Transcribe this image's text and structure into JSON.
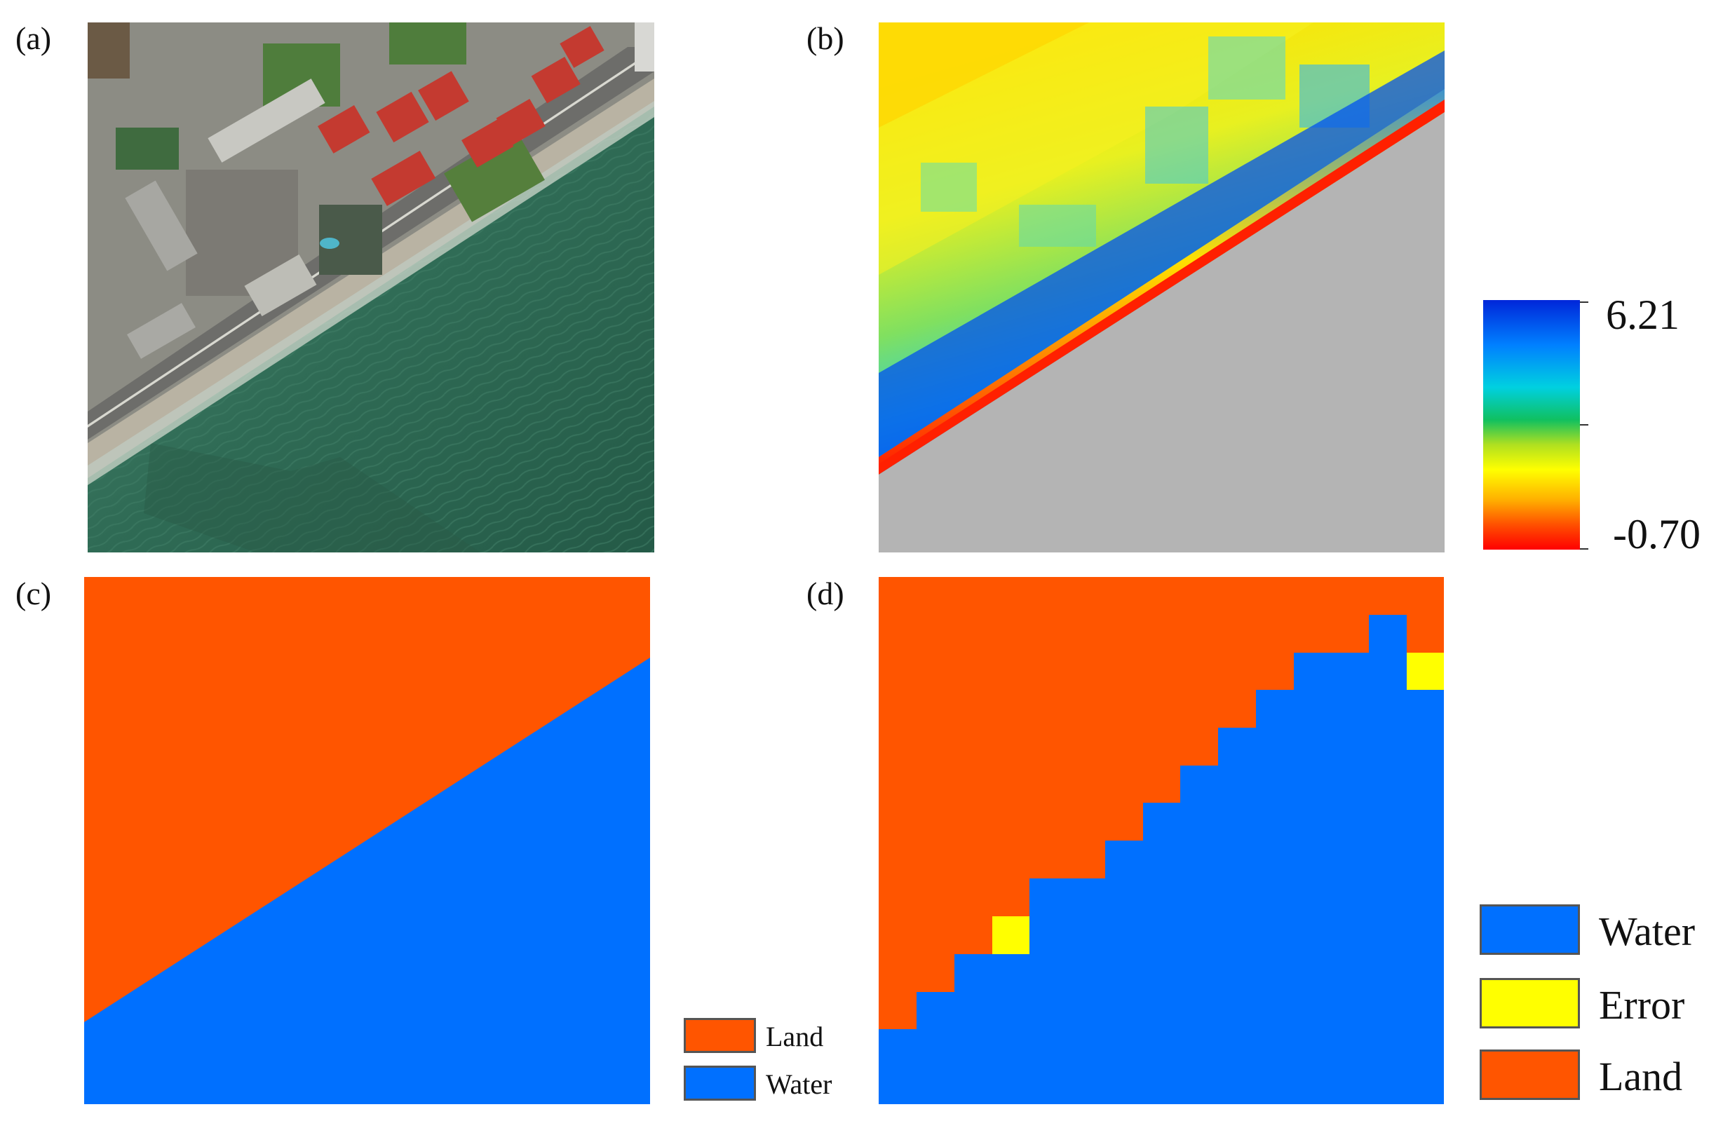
{
  "panels": {
    "a": {
      "label": "(a)"
    },
    "b": {
      "label": "(b)"
    },
    "c": {
      "label": "(c)"
    },
    "d": {
      "label": "(d)"
    }
  },
  "colorbar": {
    "max_label": "6.21",
    "min_label": "-0.70",
    "stops": [
      "#0026d9",
      "#0080ff",
      "#00d0e0",
      "#10c060",
      "#b0e020",
      "#ffff00",
      "#ffb000",
      "#ff5000",
      "#ff0000"
    ]
  },
  "legend_c": {
    "items": [
      {
        "label": "Land",
        "color": "#ff5500"
      },
      {
        "label": "Water",
        "color": "#0070ff"
      }
    ]
  },
  "legend_d": {
    "items": [
      {
        "label": "Water",
        "color": "#0070ff"
      },
      {
        "label": "Error",
        "color": "#ffff00"
      },
      {
        "label": "Land",
        "color": "#ff5500"
      }
    ]
  },
  "colors": {
    "land": "#ff5500",
    "water": "#0070ff",
    "error": "#ffff00",
    "nodata": "#b4b4b4"
  }
}
